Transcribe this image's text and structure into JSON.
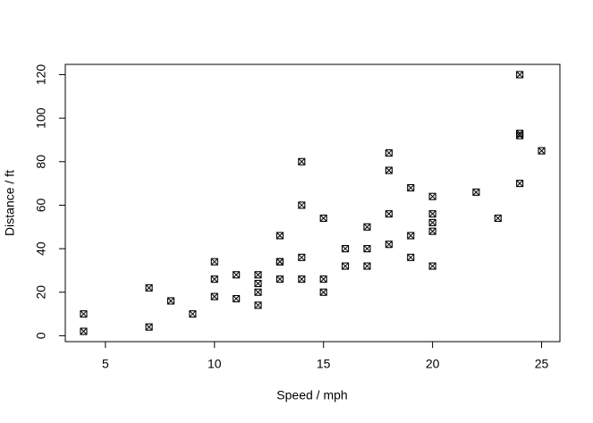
{
  "chart_data": {
    "type": "scatter",
    "x_label": "Speed / mph",
    "y_label": "Distance / ft",
    "x": [
      4,
      4,
      7,
      7,
      8,
      9,
      10,
      10,
      10,
      11,
      11,
      12,
      12,
      12,
      12,
      13,
      13,
      13,
      13,
      14,
      14,
      14,
      14,
      15,
      15,
      15,
      16,
      16,
      17,
      17,
      17,
      18,
      18,
      18,
      18,
      19,
      19,
      19,
      20,
      20,
      20,
      20,
      20,
      22,
      23,
      24,
      24,
      24,
      24,
      25
    ],
    "values": [
      2,
      10,
      4,
      22,
      16,
      10,
      18,
      26,
      34,
      17,
      28,
      14,
      20,
      24,
      28,
      26,
      34,
      34,
      46,
      26,
      36,
      60,
      80,
      20,
      26,
      54,
      32,
      40,
      32,
      40,
      50,
      42,
      56,
      76,
      84,
      36,
      46,
      68,
      32,
      48,
      52,
      56,
      64,
      66,
      54,
      70,
      92,
      93,
      120,
      85
    ],
    "color": "#000000",
    "xlim": [
      3.16,
      25.84
    ],
    "xticks": [
      5,
      10,
      15,
      20,
      25
    ],
    "ylim": [
      -2.72,
      124.72
    ],
    "yticks": [
      0,
      20,
      40,
      60,
      80,
      100,
      120
    ]
  }
}
